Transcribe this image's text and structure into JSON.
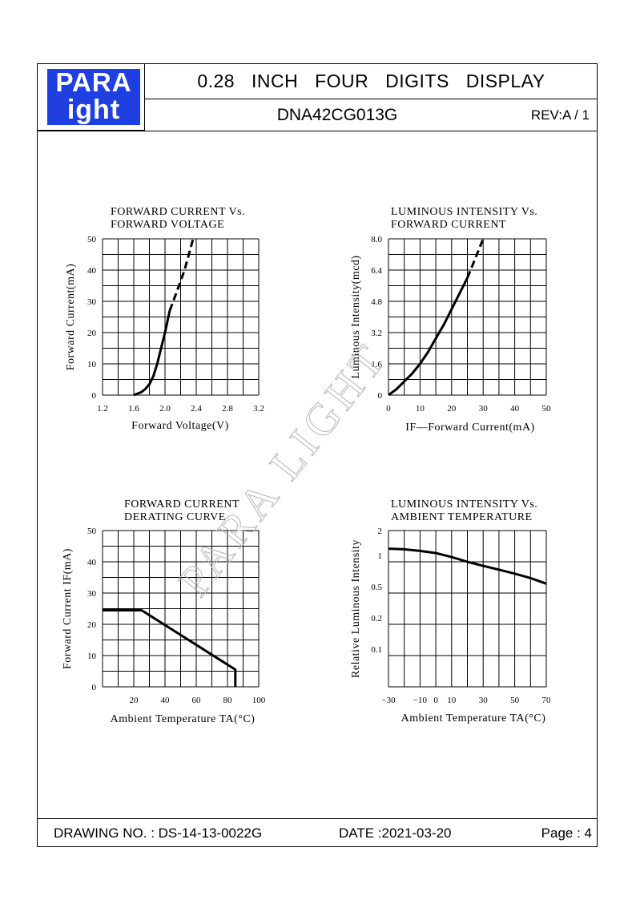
{
  "header": {
    "logo_line1": "PARA",
    "logo_line2": "ight",
    "title": "0.28 INCH FOUR DIGITS DISPLAY",
    "part_number": "DNA42CG013G",
    "revision": "REV:A / 1"
  },
  "footer": {
    "drawing_no": "DRAWING NO. : DS-14-13-0022G",
    "date": "DATE :2021-03-20",
    "page": "Page : 4"
  },
  "watermark": "PARA LIGHT",
  "colors": {
    "logo_blue": "#1f3fe0",
    "line": "#000000"
  },
  "chart_data": [
    {
      "type": "line",
      "title": [
        "FORWARD  CURRENT  Vs.",
        "FORWARD  VOLTAGE"
      ],
      "xlabel": "Forward  Voltage(V)",
      "ylabel": "Forward  Current(mA)",
      "xlim": [
        1.2,
        3.2
      ],
      "ylim": [
        0,
        50
      ],
      "xticks": [
        "1.2",
        "1.6",
        "2.0",
        "2.4",
        "2.8",
        "3.2"
      ],
      "yticks": [
        "0",
        "10",
        "20",
        "30",
        "40",
        "50"
      ],
      "grid": {
        "cols": 10,
        "rows": 10
      },
      "series": [
        {
          "style": "solid",
          "x": [
            1.6,
            1.7,
            1.75,
            1.8,
            1.85,
            1.9,
            1.95,
            2.0,
            2.03,
            2.06
          ],
          "y": [
            0,
            1,
            2,
            3.5,
            6,
            10,
            15,
            20,
            23.5,
            27
          ]
        },
        {
          "style": "dashed",
          "x": [
            2.06,
            2.15,
            2.25,
            2.36
          ],
          "y": [
            27,
            33,
            40,
            50
          ]
        }
      ]
    },
    {
      "type": "line",
      "title": [
        "LUMINOUS  INTENSITY  Vs.",
        "FORWARD  CURRENT"
      ],
      "xlabel": "IF—Forward  Current(mA)",
      "ylabel": "Luminous  Intensity(mcd)",
      "xlim": [
        0,
        50
      ],
      "ylim": [
        0,
        8.0
      ],
      "xticks": [
        "0",
        "10",
        "20",
        "30",
        "40",
        "50"
      ],
      "yticks": [
        "0",
        "1.6",
        "3.2",
        "4.8",
        "6.4",
        "8.0"
      ],
      "grid": {
        "cols": 10,
        "rows": 10
      },
      "series": [
        {
          "style": "solid",
          "x": [
            0,
            2.5,
            5,
            7.5,
            10,
            12.5,
            15,
            17.5,
            20,
            22.5,
            25
          ],
          "y": [
            0,
            0.3,
            0.7,
            1.1,
            1.6,
            2.2,
            2.9,
            3.6,
            4.4,
            5.2,
            6.0
          ]
        },
        {
          "style": "dashed",
          "x": [
            25,
            27.5,
            30
          ],
          "y": [
            6.0,
            7.0,
            8.0
          ]
        }
      ]
    },
    {
      "type": "line",
      "title": [
        "FORWARD  CURRENT",
        "DERATING  CURVE"
      ],
      "xlabel": "Ambient  Temperature  TA(°C)",
      "ylabel": "Forward  Current  IF(mA)",
      "xlim": [
        0,
        100
      ],
      "ylim": [
        0,
        50
      ],
      "xticks": [
        "20",
        "40",
        "60",
        "80",
        "100"
      ],
      "yticks": [
        "0",
        "10",
        "20",
        "30",
        "40",
        "50"
      ],
      "grid": {
        "cols": 10,
        "rows": 10
      },
      "series": [
        {
          "style": "solid",
          "x": [
            0,
            25,
            85,
            85
          ],
          "y": [
            24.5,
            24.5,
            5.5,
            0
          ]
        }
      ]
    },
    {
      "type": "line",
      "title": [
        "LUMINOUS  INTENSITY  Vs.",
        "AMBIENT  TEMPERATURE"
      ],
      "xlabel": "Ambient  Temperature  TA(°C)",
      "ylabel": "Relative  Luminous  Intensity",
      "xlim": [
        -30,
        70
      ],
      "ylim": [
        0,
        5
      ],
      "xticks": [
        "−30",
        "−10",
        "0",
        "10",
        "30",
        "50",
        "70"
      ],
      "xtick_values": [
        -30,
        -10,
        0,
        10,
        30,
        50,
        70
      ],
      "yticks": [
        "0.1",
        "0.2",
        "0.5",
        "1",
        "2"
      ],
      "ytick_values": [
        1.2,
        2.2,
        3.2,
        4.2,
        5.0
      ],
      "grid": {
        "cols": 10,
        "rows": 5
      },
      "series": [
        {
          "style": "solid",
          "x": [
            -30,
            -20,
            -10,
            0,
            10,
            20,
            30,
            40,
            50,
            60,
            70
          ],
          "y": [
            4.42,
            4.4,
            4.35,
            4.28,
            4.15,
            4.0,
            3.87,
            3.75,
            3.62,
            3.48,
            3.3
          ]
        }
      ]
    }
  ]
}
